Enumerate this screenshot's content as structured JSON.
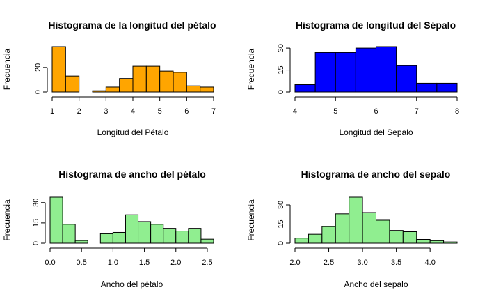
{
  "chart_data": [
    {
      "type": "bar",
      "title": "Histograma de la longitud del pétalo",
      "xlabel": "Longitud del Pétalo",
      "ylabel": "Frecuencia",
      "color": "#FFA500",
      "bin_edges": [
        1,
        1.5,
        2,
        2.5,
        3,
        3.5,
        4,
        4.5,
        5,
        5.5,
        6,
        6.5,
        7
      ],
      "values": [
        37,
        13,
        0,
        1,
        4,
        11,
        21,
        21,
        17,
        16,
        5,
        4
      ],
      "x_ticks": [
        1,
        2,
        3,
        4,
        5,
        6,
        7
      ],
      "y_ticks": [
        0,
        20
      ],
      "xlim": [
        1,
        7
      ],
      "ylim": [
        0,
        37
      ],
      "grid": false
    },
    {
      "type": "bar",
      "title": "Histograma de longitud del Sépalo",
      "xlabel": "Longitud del Sepalo",
      "ylabel": "Frecuencia",
      "color": "#0000FF",
      "bin_edges": [
        4,
        4.5,
        5,
        5.5,
        6,
        6.5,
        7,
        7.5,
        8
      ],
      "values": [
        5,
        27,
        27,
        30,
        31,
        18,
        6,
        6
      ],
      "x_ticks": [
        4,
        5,
        6,
        7,
        8
      ],
      "y_ticks": [
        0,
        15,
        30
      ],
      "xlim": [
        4,
        8
      ],
      "ylim": [
        0,
        31
      ],
      "grid": false
    },
    {
      "type": "bar",
      "title": "Histograma de ancho del pétalo",
      "xlabel": "Ancho del pétalo",
      "ylabel": "Frecuencia",
      "color": "#90EE90",
      "bin_edges": [
        0,
        0.2,
        0.4,
        0.6,
        0.8,
        1.0,
        1.2,
        1.4,
        1.6,
        1.8,
        2.0,
        2.2,
        2.4,
        2.6
      ],
      "values": [
        34,
        14,
        2,
        0,
        7,
        8,
        21,
        16,
        14,
        11,
        9,
        11,
        3
      ],
      "x_ticks": [
        0.0,
        0.5,
        1.0,
        1.5,
        2.0,
        2.5
      ],
      "x_tick_labels": [
        "0.0",
        "0.5",
        "1.0",
        "1.5",
        "2.0",
        "2.5"
      ],
      "y_ticks": [
        0,
        15,
        30
      ],
      "xlim": [
        0,
        2.6
      ],
      "ylim": [
        0,
        34
      ],
      "grid": false
    },
    {
      "type": "bar",
      "title": "Histograma de ancho del sepalo",
      "xlabel": "Ancho del sepalo",
      "ylabel": "Frecuencia",
      "color": "#90EE90",
      "bin_edges": [
        2.0,
        2.2,
        2.4,
        2.6,
        2.8,
        3.0,
        3.2,
        3.4,
        3.6,
        3.8,
        4.0,
        4.2,
        4.4
      ],
      "values": [
        4,
        7,
        13,
        23,
        36,
        24,
        18,
        10,
        9,
        3,
        2,
        1
      ],
      "x_ticks": [
        2.0,
        2.5,
        3.0,
        3.5,
        4.0
      ],
      "x_tick_labels": [
        "2.0",
        "2.5",
        "3.0",
        "3.5",
        "4.0"
      ],
      "y_ticks": [
        0,
        15,
        30
      ],
      "xlim": [
        2.0,
        4.4
      ],
      "ylim": [
        0,
        36
      ],
      "grid": false
    }
  ]
}
